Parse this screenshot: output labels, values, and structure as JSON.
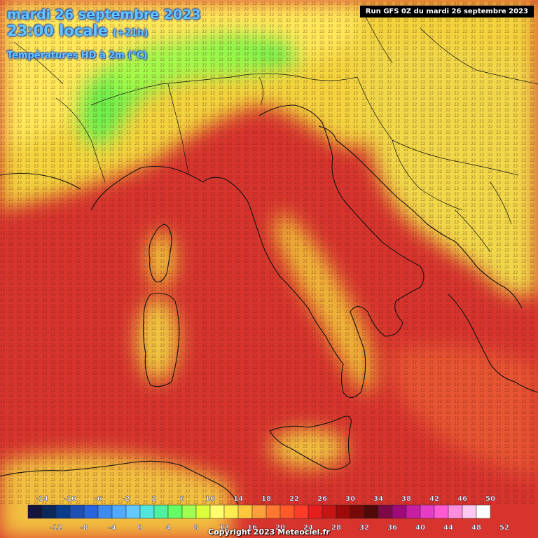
{
  "header": {
    "date_line": "mardi 26 septembre 2023",
    "time_line": "23:00 locale",
    "time_offset": "(+21h)",
    "variable": "Températures HD à 2m (°C)"
  },
  "run_info": "Run GFS 0Z du mardi 26 septembre 2023",
  "copyright": "Copyright 2023 Meteociel.fr",
  "legend": {
    "colors": [
      "#14143c",
      "#0a285a",
      "#0a3c8c",
      "#1e50b4",
      "#2864dc",
      "#3c8cf0",
      "#50aaff",
      "#64c8ff",
      "#50e6dc",
      "#50f0a0",
      "#64ff64",
      "#a0ff50",
      "#dcff3c",
      "#ffff6e",
      "#ffeb50",
      "#ffc83c",
      "#ffa03c",
      "#ff7832",
      "#ff5a28",
      "#ff3c28",
      "#e61e1e",
      "#c81414",
      "#a00a0a",
      "#780a0a",
      "#500a0a",
      "#7d0a46",
      "#a00a78",
      "#c81ea0",
      "#e63cc8",
      "#ff5ad2",
      "#ff8cdc",
      "#ffc8f0",
      "#ffffff"
    ],
    "labels_top": [
      "-14",
      "-10",
      "-6",
      "-2",
      "2",
      "6",
      "10",
      "14",
      "18",
      "22",
      "26",
      "30",
      "34",
      "38",
      "42",
      "46",
      "50"
    ],
    "labels_bottom": [
      "-12",
      "-8",
      "-4",
      "0",
      "4",
      "8",
      "12",
      "16",
      "20",
      "24",
      "28",
      "32",
      "36",
      "40",
      "44",
      "48",
      "52"
    ]
  }
}
